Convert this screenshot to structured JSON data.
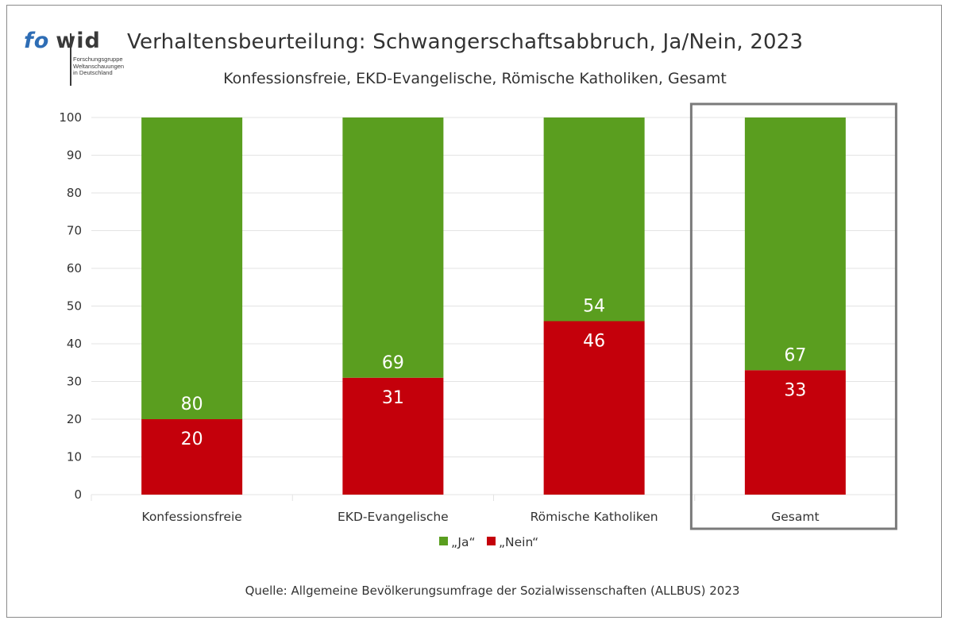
{
  "logo": {
    "word_fo": "fo",
    "word_wid": "wid",
    "sub_lines": [
      "Forschungsgruppe",
      "Weltanschauungen",
      "in Deutschland"
    ]
  },
  "title": "Verhaltensbeurteilung: Schwangerschaftsabbruch, Ja/Nein, 2023",
  "subtitle": "Konfessionsfreie, EKD-Evangelische, Römische Katholiken, Gesamt",
  "source": "Quelle: Allgemeine Bevölkerungsumfrage der Sozialwissenschaften (ALLBUS) 2023",
  "colors": {
    "ja": "#5a9e1f",
    "nein": "#c4000b",
    "grid": "#e3e3e3",
    "highlight_box": "#7a7a7a"
  },
  "chart_data": {
    "type": "bar",
    "stacked": true,
    "categories": [
      "Konfessionsfreie",
      "EKD-Evangelische",
      "Römische Katholiken",
      "Gesamt"
    ],
    "series": [
      {
        "name": "„Nein“",
        "values": [
          20,
          31,
          46,
          33
        ]
      },
      {
        "name": "„Ja“",
        "values": [
          80,
          69,
          54,
          67
        ]
      }
    ],
    "ylim": [
      0,
      100
    ],
    "yticks": [
      0,
      10,
      20,
      30,
      40,
      50,
      60,
      70,
      80,
      90,
      100
    ],
    "grid": true,
    "legend": {
      "position": "bottom",
      "entries": [
        "„Ja“",
        "„Nein“"
      ]
    },
    "highlighted_category": "Gesamt"
  }
}
